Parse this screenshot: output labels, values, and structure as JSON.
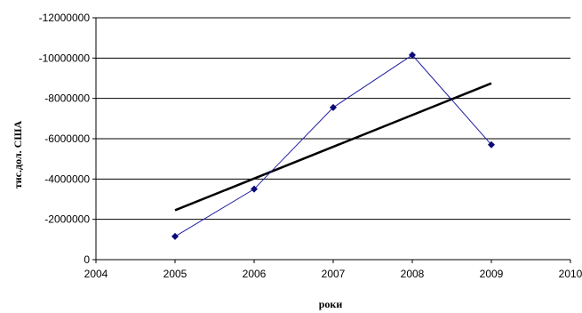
{
  "chart_data": {
    "type": "scatter",
    "title": "",
    "xlabel": "роки",
    "ylabel": "тис.дол. США",
    "xlim": [
      2004,
      2010
    ],
    "ylim": [
      0,
      -12000000
    ],
    "y_axis_reversed": true,
    "grid": "horizontal",
    "legend": "none",
    "x_ticks": [
      2004,
      2005,
      2006,
      2007,
      2008,
      2009,
      2010
    ],
    "x_tick_labels": [
      "2004",
      "2005",
      "2006",
      "2007",
      "2008",
      "2009",
      "2010"
    ],
    "y_ticks": [
      0,
      -2000000,
      -4000000,
      -6000000,
      -8000000,
      -10000000,
      -12000000
    ],
    "y_tick_labels": [
      "0",
      "-2000000",
      "-4000000",
      "-6000000",
      "-8000000",
      "-10000000",
      "-12000000"
    ],
    "series": [
      {
        "color": "#1f1fa0",
        "marker": "diamond",
        "line_style": "thin-solid",
        "x": [
          2005,
          2006,
          2007,
          2008,
          2009
        ],
        "y": [
          -1150000,
          -3500000,
          -7550000,
          -10150000,
          -5700000
        ]
      }
    ],
    "trendline": {
      "type": "linear",
      "color": "#000000",
      "x": [
        2005,
        2009
      ],
      "y": [
        -2450000,
        -8750000
      ]
    }
  }
}
